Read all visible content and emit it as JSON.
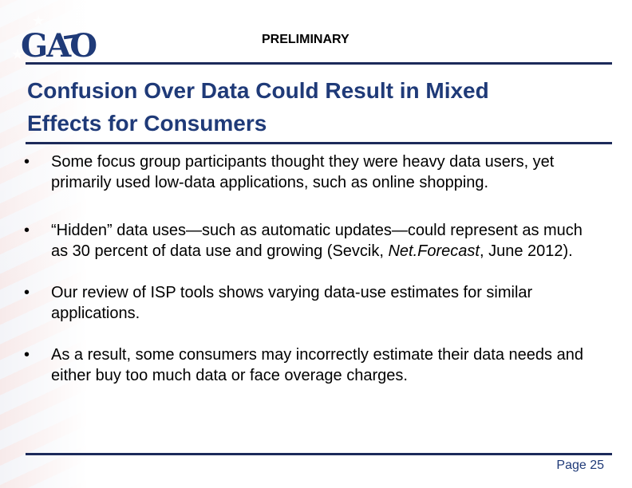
{
  "header": {
    "logo_text": "GAO",
    "label": "PRELIMINARY"
  },
  "slide": {
    "title_line1": "Confusion Over Data Could Result in Mixed",
    "title_line2": "Effects for Consumers",
    "bullet_marker": "•",
    "bullets": [
      {
        "text": "Some focus group participants thought they were heavy data users,  yet primarily used low-data applications, such as online shopping."
      },
      {
        "text_before": "“Hidden” data uses—such as automatic updates—could represent as much as 30 percent of data use and growing (Sevcik, ",
        "text_italic": "Net.Forecast",
        "text_after": ", June 2012)."
      },
      {
        "text": "Our review of ISP tools shows varying data-use estimates for similar applications."
      },
      {
        "text": "As a result, some consumers may incorrectly estimate their data needs and either buy too much data or face overage charges."
      }
    ]
  },
  "footer": {
    "page_label": "Page 25"
  },
  "colors": {
    "title": "#1f3a78",
    "rule": "#1c2a5a",
    "background": "#ffffff"
  }
}
